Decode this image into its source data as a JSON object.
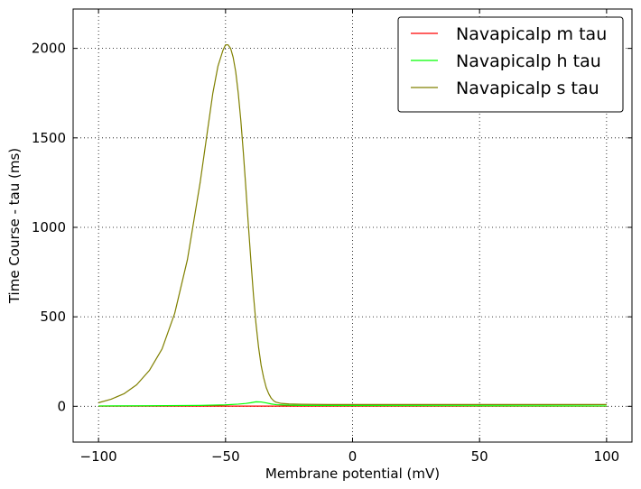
{
  "chart_data": {
    "type": "line",
    "title": "",
    "xlabel": "Membrane potential (mV)",
    "ylabel": "Time Course - tau (ms)",
    "xlim": [
      -110,
      110
    ],
    "ylim": [
      -200,
      2220
    ],
    "xticks": [
      -100,
      -50,
      0,
      50,
      100
    ],
    "xtick_labels": [
      "−100",
      "−50",
      "0",
      "50",
      "100"
    ],
    "yticks": [
      0,
      500,
      1000,
      1500,
      2000
    ],
    "ytick_labels": [
      "0",
      "500",
      "1000",
      "1500",
      "2000"
    ],
    "grid": true,
    "legend_position": "top-right",
    "series": [
      {
        "name": "Navapicalp m tau",
        "color": "#ff0000",
        "x": [
          -100,
          -90,
          -80,
          -70,
          -60,
          -50,
          -45,
          -40,
          -35,
          -30,
          -20,
          0,
          50,
          100
        ],
        "y": [
          1,
          1,
          1,
          1,
          1,
          1,
          1,
          1,
          1,
          1,
          1,
          1,
          1,
          1
        ]
      },
      {
        "name": "Navapicalp h tau",
        "color": "#00ff00",
        "x": [
          -100,
          -80,
          -60,
          -50,
          -45,
          -42,
          -40,
          -38,
          -36,
          -34,
          -32,
          -30,
          -25,
          -20,
          0,
          50,
          100
        ],
        "y": [
          2,
          3,
          5,
          8,
          12,
          16,
          20,
          25,
          24,
          19,
          13,
          9,
          6,
          5,
          4,
          3,
          2
        ]
      },
      {
        "name": "Navapicalp s tau",
        "color": "#808000",
        "x": [
          -100,
          -95,
          -90,
          -85,
          -80,
          -75,
          -70,
          -65,
          -60,
          -57,
          -55,
          -53,
          -51,
          -50,
          -49,
          -48,
          -47,
          -46,
          -45,
          -44,
          -43,
          -42,
          -41,
          -40,
          -39,
          -38,
          -37,
          -36,
          -35,
          -34,
          -33,
          -32,
          -31,
          -30,
          -28,
          -25,
          -20,
          -10,
          0,
          25,
          50,
          75,
          100
        ],
        "y": [
          20,
          40,
          70,
          120,
          200,
          320,
          520,
          820,
          1250,
          1550,
          1750,
          1900,
          1990,
          2020,
          2020,
          2000,
          1950,
          1870,
          1750,
          1600,
          1420,
          1220,
          1010,
          810,
          620,
          460,
          330,
          230,
          160,
          105,
          70,
          45,
          30,
          22,
          16,
          13,
          11,
          10,
          10,
          10,
          10,
          10,
          10
        ]
      }
    ]
  }
}
